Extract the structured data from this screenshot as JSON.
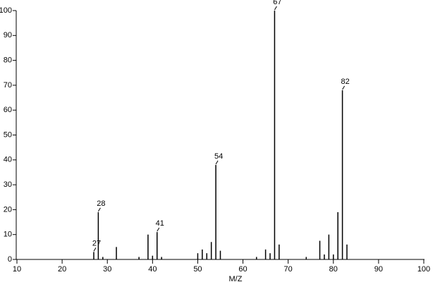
{
  "chart_data": {
    "type": "stick",
    "xlabel": "M/Z",
    "x": [
      27,
      28,
      29,
      32,
      37,
      39,
      40,
      41,
      42,
      50,
      51,
      52,
      53,
      54,
      55,
      63,
      65,
      66,
      67,
      68,
      74,
      77,
      78,
      79,
      80,
      81,
      82,
      83
    ],
    "values": [
      3,
      19,
      1,
      5,
      1,
      10,
      1.5,
      11,
      1,
      2.5,
      4,
      2.5,
      7,
      38,
      3.5,
      1,
      4,
      2.5,
      100,
      6,
      1,
      7.5,
      2,
      10,
      2,
      19,
      68,
      6
    ],
    "annotations": [
      27,
      28,
      41,
      54,
      67,
      82
    ],
    "color": "#000000",
    "xlim": [
      10,
      100
    ],
    "xticks": [
      10,
      20,
      30,
      40,
      50,
      60,
      70,
      80,
      90,
      100
    ],
    "ylim": [
      0,
      100
    ],
    "yticks": [
      0,
      10,
      20,
      30,
      40,
      50,
      60,
      70,
      80,
      90,
      100
    ]
  }
}
